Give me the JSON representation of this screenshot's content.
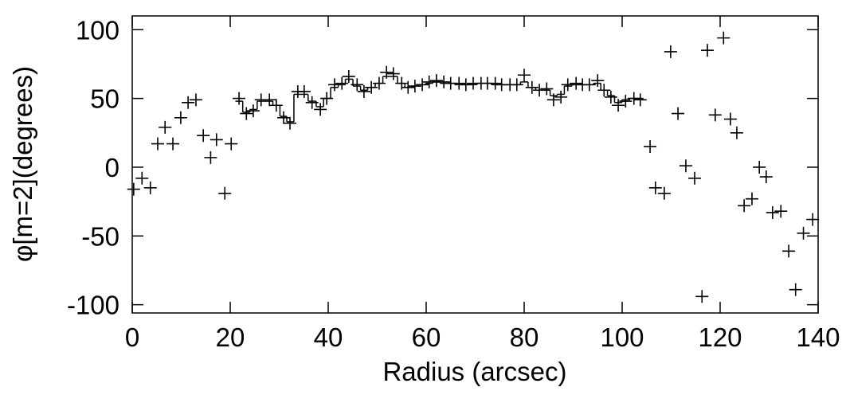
{
  "chart_data": {
    "type": "scatter",
    "xlabel": "Radius (arcsec)",
    "ylabel": "φ[m=2](degrees)",
    "xlim": [
      0,
      140
    ],
    "xticks": [
      0,
      20,
      40,
      60,
      80,
      100,
      120,
      140
    ],
    "ylim": [
      -106,
      110
    ],
    "yticks": [
      -100,
      -50,
      0,
      50,
      100
    ],
    "color": "#000000",
    "series": [
      {
        "marker": "+",
        "x": [
          0.3,
          2,
          3.7,
          5.2,
          6.7,
          8.3,
          9.9,
          11.4,
          13,
          14.5,
          16,
          17.2,
          18.9,
          20.2,
          21.8,
          23.3,
          24.7,
          26.3,
          28,
          29.4,
          30.9,
          32.2,
          33.8,
          35.1,
          36.7,
          38.4,
          39.7,
          41.3,
          42.8,
          44.2,
          45.9,
          47.3,
          48.8,
          50.4,
          51.9,
          53.3,
          55,
          56.3,
          57.7,
          59.2,
          60.6,
          62.1,
          63.6,
          65,
          66.7,
          68.1,
          69.6,
          71.2,
          72.5,
          74.1,
          75.4,
          77.1,
          78.5,
          80,
          81.6,
          83.1,
          84.6,
          86,
          87.5,
          88.9,
          90.6,
          91.9,
          93.3,
          95,
          96.3,
          97.7,
          99.2,
          100.7,
          102.4,
          103.7,
          105.7,
          106.8,
          108.6,
          109.9,
          111.4,
          113,
          114.8,
          116.3,
          117.4,
          119,
          120.7,
          122.1,
          123.4,
          124.9,
          126.5,
          128,
          129.4,
          130.7,
          132.4,
          134,
          135.4,
          137,
          138.9
        ],
        "values": [
          -16,
          -8,
          -15,
          17,
          29,
          17,
          36,
          47,
          49,
          23,
          7,
          20,
          -19,
          17,
          50,
          39,
          41,
          49,
          49,
          45,
          36,
          32,
          55,
          55,
          47,
          42,
          50,
          60,
          61,
          66,
          60,
          55,
          58,
          61,
          69,
          68,
          61,
          58,
          59,
          60,
          62,
          63,
          62,
          61,
          61,
          60,
          61,
          61,
          61,
          61,
          60,
          60,
          60,
          67,
          58,
          56,
          57,
          49,
          51,
          60,
          61,
          60,
          60,
          63,
          56,
          51,
          45,
          48,
          50,
          49,
          15,
          -15,
          -19,
          84,
          39,
          1,
          -8,
          -94,
          85,
          38,
          94,
          35,
          25,
          -28,
          -23,
          0,
          -7,
          -33,
          -32,
          -61,
          -89,
          -48,
          -38
        ]
      },
      {
        "line": "step",
        "x": [
          21.8,
          23.3,
          24.7,
          26.3,
          28,
          29.4,
          30.9,
          32.2,
          33.8,
          35.1,
          36.7,
          38.4,
          39.7,
          41.3,
          42.8,
          44.2,
          45.9,
          47.3,
          48.8,
          50.4,
          51.9,
          53.3,
          55,
          56.3,
          57.7,
          59.2,
          60.6,
          62.1,
          63.6,
          65,
          66.7,
          68.1,
          69.6,
          71.2,
          72.5,
          74.1,
          75.4,
          77.1,
          78.5,
          80,
          81.6,
          83.1,
          84.6,
          86,
          87.5,
          88.9,
          90.6,
          91.9,
          93.3,
          95,
          96.3,
          97.7,
          99.2,
          100.7,
          102.4,
          103.7
        ],
        "values": [
          48,
          40,
          42,
          48,
          48,
          45,
          37,
          33,
          53,
          53,
          48,
          44,
          50,
          58,
          60,
          64,
          59,
          56,
          58,
          61,
          66,
          66,
          61,
          58,
          59,
          60,
          61,
          62,
          61,
          61,
          60,
          60,
          60,
          61,
          61,
          60,
          60,
          60,
          60,
          62,
          58,
          56,
          56,
          52,
          53,
          59,
          60,
          60,
          60,
          61,
          56,
          52,
          47,
          49,
          50,
          50
        ]
      }
    ]
  }
}
